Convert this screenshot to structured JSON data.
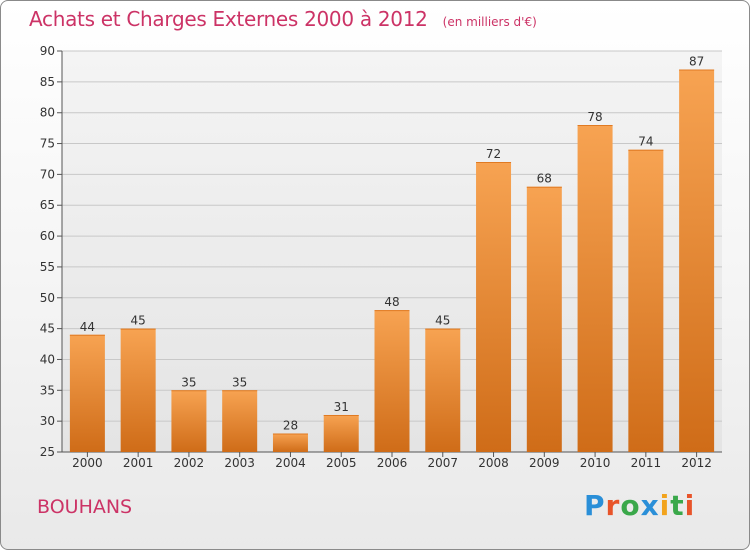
{
  "header": {
    "title": "Achats et Charges Externes 2000 à 2012",
    "unit": "(en milliers d'€)"
  },
  "footer": {
    "commune": "BOUHANS",
    "logo_text": "Proxiti",
    "logo_colors": [
      "#2a8fd8",
      "#e8542a",
      "#3aa84a",
      "#2a8fd8",
      "#f2a31c",
      "#3aa84a",
      "#e8542a"
    ]
  },
  "colors": {
    "bar_top": "#f7a352",
    "bar_bottom": "#cf6c18",
    "accent": "#cc3366"
  },
  "chart_data": {
    "type": "bar",
    "categories": [
      "2000",
      "2001",
      "2002",
      "2003",
      "2004",
      "2005",
      "2006",
      "2007",
      "2008",
      "2009",
      "2010",
      "2011",
      "2012"
    ],
    "values": [
      44,
      45,
      35,
      35,
      28,
      31,
      48,
      45,
      72,
      68,
      78,
      74,
      87
    ],
    "title": "Achats et Charges Externes 2000 à 2012",
    "subtitle": "(en milliers d'€)",
    "xlabel": "",
    "ylabel": "",
    "ylim": [
      25,
      90
    ],
    "yticks": [
      25,
      30,
      35,
      40,
      45,
      50,
      55,
      60,
      65,
      70,
      75,
      80,
      85,
      90
    ],
    "grid": true,
    "legend": "none"
  }
}
